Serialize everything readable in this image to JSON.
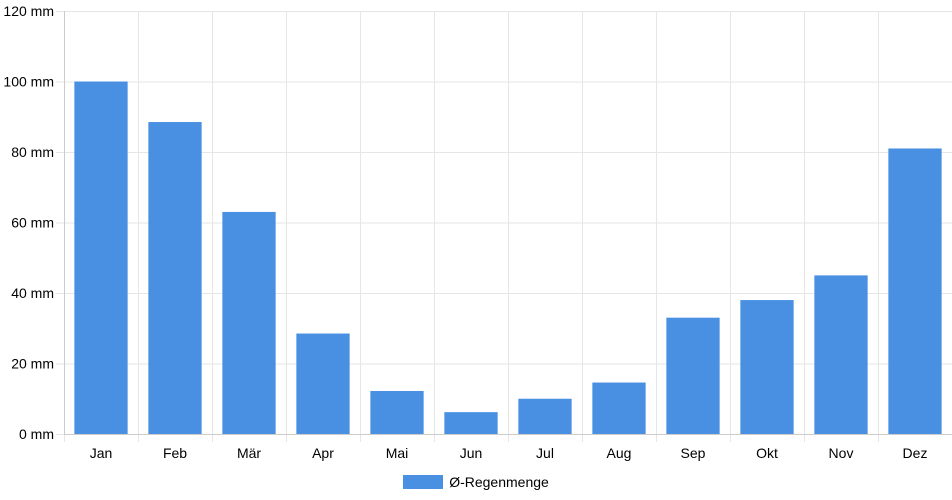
{
  "chart_data": {
    "type": "bar",
    "categories": [
      "Jan",
      "Feb",
      "Mär",
      "Apr",
      "Mai",
      "Jun",
      "Jul",
      "Aug",
      "Sep",
      "Okt",
      "Nov",
      "Dez"
    ],
    "series": [
      {
        "name": "Ø-Regenmenge",
        "values": [
          100,
          88.5,
          63,
          28.5,
          12.2,
          6.2,
          10,
          14.6,
          33,
          38,
          45,
          81
        ]
      }
    ],
    "ylim": [
      0,
      120
    ],
    "yticks": [
      0,
      20,
      40,
      60,
      80,
      100,
      120
    ],
    "ytick_suffix": " mm",
    "grid": true,
    "legend_position": "bottom",
    "bar_color": "#4a90e2",
    "grid_color": "#e6e6e6",
    "axis_color": "#cccccc"
  }
}
